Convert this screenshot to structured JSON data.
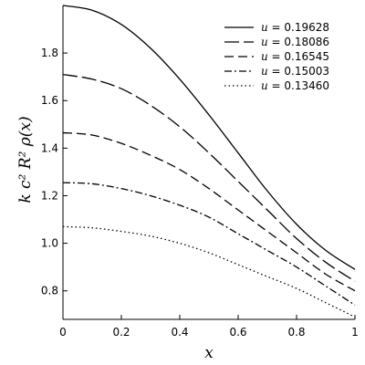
{
  "chart_data": {
    "type": "line",
    "xlabel": "x",
    "ylabel": "k c² R² ρ(x)",
    "xlim": [
      0,
      1
    ],
    "ylim": [
      0.68,
      2.0
    ],
    "xticks": [
      0,
      0.2,
      0.4,
      0.6,
      0.8,
      1
    ],
    "xtick_labels": [
      "0",
      "0.2",
      "0.4",
      "0.6",
      "0.8",
      "1"
    ],
    "yticks": [
      0.8,
      1.0,
      1.2,
      1.4,
      1.6,
      1.8
    ],
    "ytick_labels": [
      "0.8",
      "1.0",
      "1.2",
      "1.4",
      "1.6",
      "1.8"
    ],
    "grid": false,
    "legend_position": "top-right",
    "legend_variable": "u",
    "x": [
      0,
      0.1,
      0.2,
      0.3,
      0.4,
      0.5,
      0.6,
      0.7,
      0.8,
      0.9,
      1.0
    ],
    "series": [
      {
        "name": "= 0.19628",
        "style": "solid",
        "values": [
          2.0,
          1.98,
          1.92,
          1.82,
          1.69,
          1.54,
          1.38,
          1.22,
          1.08,
          0.97,
          0.89
        ]
      },
      {
        "name": "= 0.18086",
        "style": "long-dash",
        "values": [
          1.71,
          1.69,
          1.65,
          1.58,
          1.49,
          1.38,
          1.26,
          1.14,
          1.02,
          0.92,
          0.84
        ]
      },
      {
        "name": "= 0.16545",
        "style": "dash",
        "values": [
          1.465,
          1.455,
          1.42,
          1.37,
          1.31,
          1.23,
          1.14,
          1.05,
          0.96,
          0.87,
          0.8
        ]
      },
      {
        "name": "= 0.15003",
        "style": "dash-dot",
        "values": [
          1.255,
          1.25,
          1.23,
          1.2,
          1.16,
          1.11,
          1.04,
          0.97,
          0.9,
          0.82,
          0.74
        ]
      },
      {
        "name": "= 0.13460",
        "style": "dotted",
        "values": [
          1.07,
          1.065,
          1.05,
          1.03,
          1.0,
          0.96,
          0.91,
          0.86,
          0.81,
          0.75,
          0.69
        ]
      }
    ]
  }
}
